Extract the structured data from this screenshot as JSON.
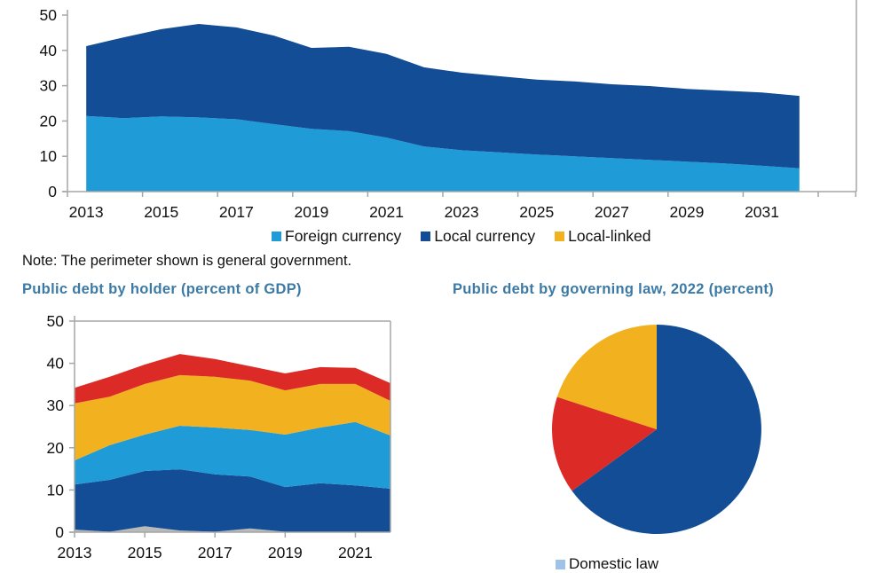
{
  "top_chart": {
    "legend_position": "bottom",
    "legend": [
      {
        "label": "Foreign currency",
        "color": "#1f9bd7"
      },
      {
        "label": "Local currency",
        "color": "#124d96"
      },
      {
        "label": "Local-linked",
        "color": "#f2b11e"
      }
    ],
    "note": "Note: The perimeter shown is general government."
  },
  "bottom_left": {
    "title": "Public debt by holder (percent of GDP)"
  },
  "bottom_right": {
    "title": "Public debt by governing law, 2022 (percent)",
    "legend_partial_label": "Domestic law"
  },
  "chart_data": [
    {
      "type": "area",
      "stacked": true,
      "title": "",
      "xlabel": "",
      "ylabel": "",
      "x": [
        "2013",
        "2014",
        "2015",
        "2016",
        "2017",
        "2018",
        "2019",
        "2020",
        "2021",
        "2022",
        "2023",
        "2024",
        "2025",
        "2026",
        "2027",
        "2028",
        "2029",
        "2030",
        "2031",
        "2032",
        "2033"
      ],
      "x_tick_labels": [
        "2013",
        "2015",
        "2017",
        "2019",
        "2021",
        "2023",
        "2025",
        "2027",
        "2029",
        "2031"
      ],
      "ylim": [
        0,
        50
      ],
      "y_ticks": [
        0,
        10,
        20,
        30,
        40,
        50
      ],
      "grid": false,
      "legend_position": "bottom",
      "series": [
        {
          "name": "Foreign currency",
          "color": "#1f9bd7",
          "values": [
            21.4,
            20.8,
            21.3,
            21.0,
            20.5,
            19.1,
            17.8,
            17.1,
            15.3,
            12.8,
            11.7,
            11.1,
            10.5,
            10.0,
            9.5,
            9.0,
            8.5,
            8.0,
            7.3,
            6.6,
            null
          ]
        },
        {
          "name": "Local currency",
          "color": "#124d96",
          "values": [
            19.8,
            22.9,
            24.7,
            26.5,
            26.0,
            25.1,
            22.9,
            23.9,
            23.7,
            22.4,
            22.0,
            21.6,
            21.2,
            21.2,
            20.9,
            20.9,
            20.6,
            20.6,
            20.8,
            20.5,
            null
          ]
        },
        {
          "name": "Local-linked",
          "color": "#f2b11e",
          "values": [
            0,
            0,
            0,
            0,
            0,
            0,
            0,
            0,
            0,
            0,
            0,
            0,
            0,
            0,
            0,
            0,
            0,
            0,
            0,
            0,
            0
          ]
        }
      ]
    },
    {
      "type": "area",
      "stacked": true,
      "title": "Public debt by holder (percent of GDP)",
      "xlabel": "",
      "ylabel": "",
      "x": [
        "2013",
        "2014",
        "2015",
        "2016",
        "2017",
        "2018",
        "2019",
        "2020",
        "2021",
        "2022"
      ],
      "x_tick_labels": [
        "2013",
        "2015",
        "2017",
        "2019",
        "2021"
      ],
      "ylim": [
        0,
        50
      ],
      "y_ticks": [
        0,
        10,
        20,
        30,
        40,
        50
      ],
      "grid": false,
      "series": [
        {
          "name": "Gray series",
          "color": "#b9b9b9",
          "values": [
            0.6,
            0.1,
            1.4,
            0.4,
            0.1,
            0.9,
            0.1,
            0.0,
            0.0,
            0.0
          ]
        },
        {
          "name": "Dark blue series",
          "color": "#124d96",
          "values": [
            10.7,
            12.3,
            13.1,
            14.5,
            13.6,
            12.3,
            10.6,
            11.6,
            11.1,
            10.3
          ]
        },
        {
          "name": "Light blue series",
          "color": "#1f9bd7",
          "values": [
            5.7,
            8.2,
            8.6,
            10.3,
            11.1,
            11.0,
            12.4,
            13.2,
            15.0,
            12.6
          ]
        },
        {
          "name": "Orange series",
          "color": "#f2b11e",
          "values": [
            13.5,
            11.5,
            12.0,
            12.0,
            12.0,
            11.7,
            10.5,
            10.3,
            9.0,
            8.2
          ]
        },
        {
          "name": "Red series",
          "color": "#dc2b27",
          "values": [
            3.7,
            4.7,
            4.6,
            5.0,
            4.2,
            3.4,
            4.0,
            4.0,
            3.8,
            4.2
          ]
        }
      ]
    },
    {
      "type": "pie",
      "title": "Public debt by governing law, 2022 (percent)",
      "start_angle": "12 o'clock",
      "direction": "clockwise",
      "slices": [
        {
          "label": "Domestic law (blue)",
          "value": 65,
          "color": "#124d96"
        },
        {
          "label": "Red slice",
          "value": 15,
          "color": "#dc2b27"
        },
        {
          "label": "Orange slice",
          "value": 20,
          "color": "#f2b11e"
        }
      ],
      "legend_position": "bottom"
    }
  ]
}
